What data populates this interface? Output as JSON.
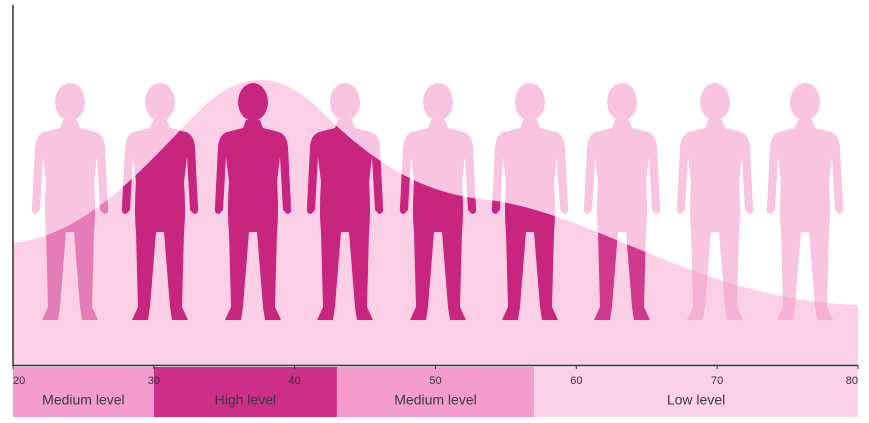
{
  "chart_data": {
    "type": "band",
    "xlim": [
      20,
      80
    ],
    "xticks": [
      20,
      30,
      40,
      50,
      60,
      70,
      80
    ],
    "bands": [
      {
        "label": "Medium level",
        "start": 20,
        "end": 30,
        "color": "#f39ccd"
      },
      {
        "label": "High level",
        "start": 30,
        "end": 43,
        "color": "#cc2e88"
      },
      {
        "label": "Medium level",
        "start": 43,
        "end": 57,
        "color": "#f39ccd"
      },
      {
        "label": "Low level",
        "start": 57,
        "end": 80,
        "color": "#fbd3e8"
      }
    ]
  }
}
